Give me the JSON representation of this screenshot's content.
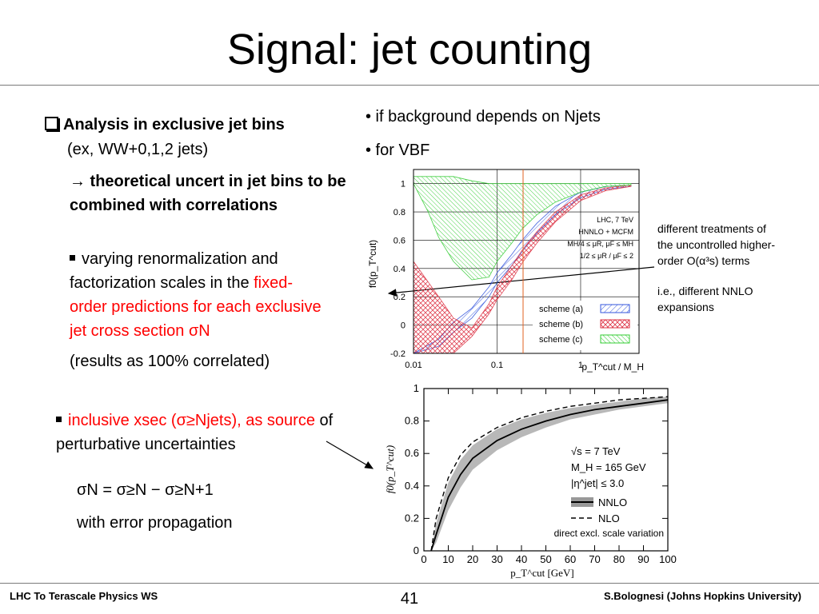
{
  "slide": {
    "title": "Signal: jet counting",
    "left": {
      "bullet1_label": "Analysis in exclusive jet bins",
      "bullet1_sub": "(ex, WW+0,1,2 jets)",
      "arrow_line1": "→ theoretical uncert in jet bins to be",
      "arrow_line2": "combined with correlations",
      "item1_line1": "varying renormalization and",
      "item1_line2_black": "factorization scales in the ",
      "item1_line2_red": "fixed-",
      "item1_line3": "order predictions for each exclusive",
      "item1_line4": "jet cross section σN",
      "item1_note": "(results as 100% correlated)",
      "item2_red": "inclusive xsec (σ≥Njets), as source",
      "item2_black": " of",
      "item2_line2": "perturbative uncertainties",
      "formula": "σN = σ≥N − σ≥N+1",
      "formula_note": "with error propagation"
    },
    "right": {
      "bullet_a": "• if background depends on Njets",
      "bullet_b": "• for VBF",
      "note_line1": "different treatments of",
      "note_line2": "the uncontrolled higher-",
      "note_line3": "order O(α³s) terms",
      "note_line4": "i.e., different NNLO",
      "note_line5": "expansions"
    },
    "footer": {
      "left": "LHC To Terascale Physics WS",
      "page": "41",
      "right": "S.Bolognesi (Johns Hopkins University)"
    }
  },
  "chart_data": [
    {
      "type": "area",
      "xlabel": "p_T^cut / M_H",
      "ylabel": "f0(p_T^cut)",
      "x_scale": "log",
      "xlim": [
        0.01,
        5
      ],
      "ylim": [
        -0.2,
        1.1
      ],
      "x_ticks": [
        "0.01",
        "0.1",
        "1"
      ],
      "y_ticks": [
        "-0.2",
        "0",
        "0.2",
        "0.4",
        "0.6",
        "0.8",
        "1"
      ],
      "annotations": [
        "LHC, 7 TeV",
        "HNNLO + MCFM",
        "MH/4 ≤ μR, μF ≤ MH",
        "1/2 ≤ μR / μF ≤ 2"
      ],
      "legend_position": "bottom-right",
      "series": [
        {
          "name": "scheme (a)",
          "color": "#3355dd",
          "x": [
            0.01,
            0.02,
            0.03,
            0.05,
            0.08,
            0.1,
            0.15,
            0.2,
            0.3,
            0.5,
            1,
            2,
            4
          ],
          "low": [
            -0.2,
            -0.15,
            -0.05,
            0.05,
            0.2,
            0.3,
            0.42,
            0.52,
            0.65,
            0.78,
            0.9,
            0.96,
            0.98
          ],
          "high": [
            -0.2,
            -0.1,
            0.02,
            0.12,
            0.27,
            0.37,
            0.5,
            0.6,
            0.72,
            0.84,
            0.94,
            0.98,
            0.99
          ]
        },
        {
          "name": "scheme (b)",
          "color": "#dd3344",
          "x": [
            0.01,
            0.02,
            0.03,
            0.05,
            0.08,
            0.1,
            0.15,
            0.2,
            0.3,
            0.5,
            1,
            2,
            4
          ],
          "low": [
            -0.2,
            -0.2,
            -0.2,
            -0.08,
            0.08,
            0.18,
            0.32,
            0.44,
            0.58,
            0.73,
            0.88,
            0.95,
            0.98
          ],
          "high": [
            0.45,
            0.2,
            0.05,
            -0.02,
            0.15,
            0.27,
            0.42,
            0.53,
            0.66,
            0.8,
            0.92,
            0.97,
            0.99
          ]
        },
        {
          "name": "scheme (c)",
          "color": "#33cc33",
          "x": [
            0.01,
            0.015,
            0.02,
            0.03,
            0.05,
            0.08,
            0.1,
            0.15,
            0.2,
            0.3,
            0.5,
            1,
            2,
            4
          ],
          "low": [
            1.0,
            0.8,
            0.62,
            0.45,
            0.32,
            0.34,
            0.45,
            0.58,
            0.68,
            0.78,
            0.87,
            0.94,
            0.98,
            0.99
          ],
          "high": [
            1.05,
            1.05,
            1.05,
            1.05,
            1.02,
            1.0,
            1.0,
            1.0,
            1.0,
            1.0,
            1.0,
            1.0,
            1.0,
            1.0
          ]
        }
      ]
    },
    {
      "type": "line",
      "xlabel": "p_T^cut [GeV]",
      "ylabel": "f0(p_T^cut)",
      "xlim": [
        0,
        100
      ],
      "ylim": [
        0,
        1
      ],
      "x_ticks": [
        "0",
        "10",
        "20",
        "30",
        "40",
        "50",
        "60",
        "70",
        "80",
        "90",
        "100"
      ],
      "y_ticks": [
        "0",
        "0.2",
        "0.4",
        "0.6",
        "0.8",
        "1"
      ],
      "annotations": [
        "√s = 7 TeV",
        "M_H = 165 GeV",
        "|η^jet| ≤ 3.0",
        "direct excl. scale variation"
      ],
      "legend_position": "bottom-right",
      "series": [
        {
          "name": "NNLO",
          "style": "solid",
          "x": [
            3,
            5,
            10,
            15,
            20,
            30,
            40,
            50,
            60,
            70,
            80,
            90,
            100
          ],
          "values": [
            0.0,
            0.1,
            0.33,
            0.47,
            0.57,
            0.68,
            0.75,
            0.8,
            0.84,
            0.87,
            0.89,
            0.91,
            0.93
          ],
          "band_low": [
            0.0,
            0.05,
            0.25,
            0.39,
            0.5,
            0.62,
            0.7,
            0.76,
            0.81,
            0.84,
            0.87,
            0.89,
            0.91
          ],
          "band_high": [
            0.0,
            0.17,
            0.42,
            0.56,
            0.65,
            0.75,
            0.81,
            0.85,
            0.88,
            0.9,
            0.92,
            0.94,
            0.95
          ]
        },
        {
          "name": "NLO",
          "style": "dashed",
          "x": [
            3,
            5,
            10,
            15,
            20,
            30,
            40,
            50,
            60,
            70,
            80,
            90,
            100
          ],
          "values": [
            0.0,
            0.2,
            0.45,
            0.59,
            0.67,
            0.76,
            0.82,
            0.86,
            0.89,
            0.91,
            0.93,
            0.94,
            0.95
          ]
        }
      ]
    }
  ]
}
